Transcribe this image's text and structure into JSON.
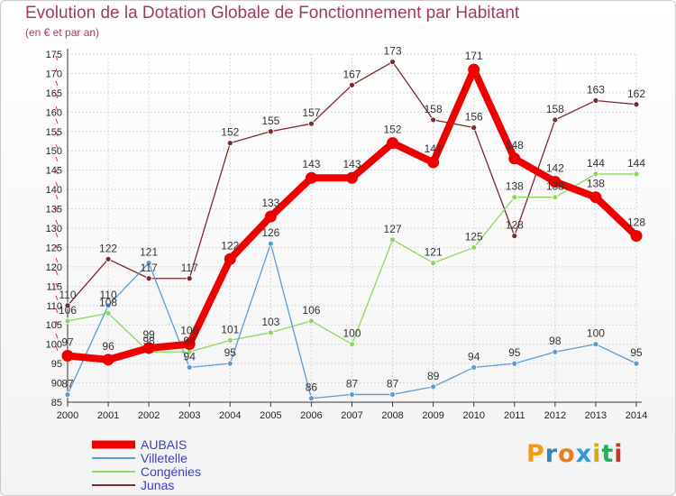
{
  "title": "Evolution de la Dotation Globale de Fonctionnement par Habitant",
  "subtitle": "(en € et par an)",
  "brand": {
    "letters": [
      "P",
      "r",
      "o",
      "x",
      "i",
      "t",
      "i"
    ],
    "colors": [
      "#f39c12",
      "#2e86c1",
      "#e67e22",
      "#3498db",
      "#d4ac0d",
      "#27ae60",
      "#c0392b"
    ]
  },
  "chart_data": {
    "type": "line",
    "x": [
      2000,
      2001,
      2002,
      2003,
      2004,
      2005,
      2006,
      2007,
      2008,
      2009,
      2010,
      2011,
      2012,
      2013,
      2014
    ],
    "ylim": [
      85,
      175
    ],
    "yticks": [
      85,
      90,
      95,
      100,
      105,
      110,
      115,
      120,
      125,
      130,
      135,
      140,
      145,
      150,
      155,
      160,
      165,
      170,
      175
    ],
    "grid": true,
    "legend": "bottom-left",
    "series": [
      {
        "name": "Junas",
        "color": "#7a2a2a",
        "values": [
          110,
          122,
          117,
          117,
          152,
          155,
          157,
          167,
          173,
          158,
          156,
          128,
          158,
          163,
          162
        ]
      },
      {
        "name": "Congénies",
        "color": "#8fd65e",
        "values": [
          106,
          108,
          98,
          98,
          101,
          103,
          106,
          100,
          127,
          121,
          125,
          138,
          138,
          144,
          144
        ]
      },
      {
        "name": "Villetelle",
        "color": "#5b9bd5",
        "values": [
          87,
          110,
          121,
          94,
          95,
          126,
          86,
          87,
          87,
          89,
          94,
          95,
          98,
          100,
          95
        ]
      },
      {
        "name": "AUBAIS",
        "color": "#ee0000",
        "values": [
          97,
          96,
          99,
          100,
          122,
          133,
          143,
          143,
          152,
          147,
          171,
          148,
          142,
          138,
          128
        ]
      }
    ]
  }
}
